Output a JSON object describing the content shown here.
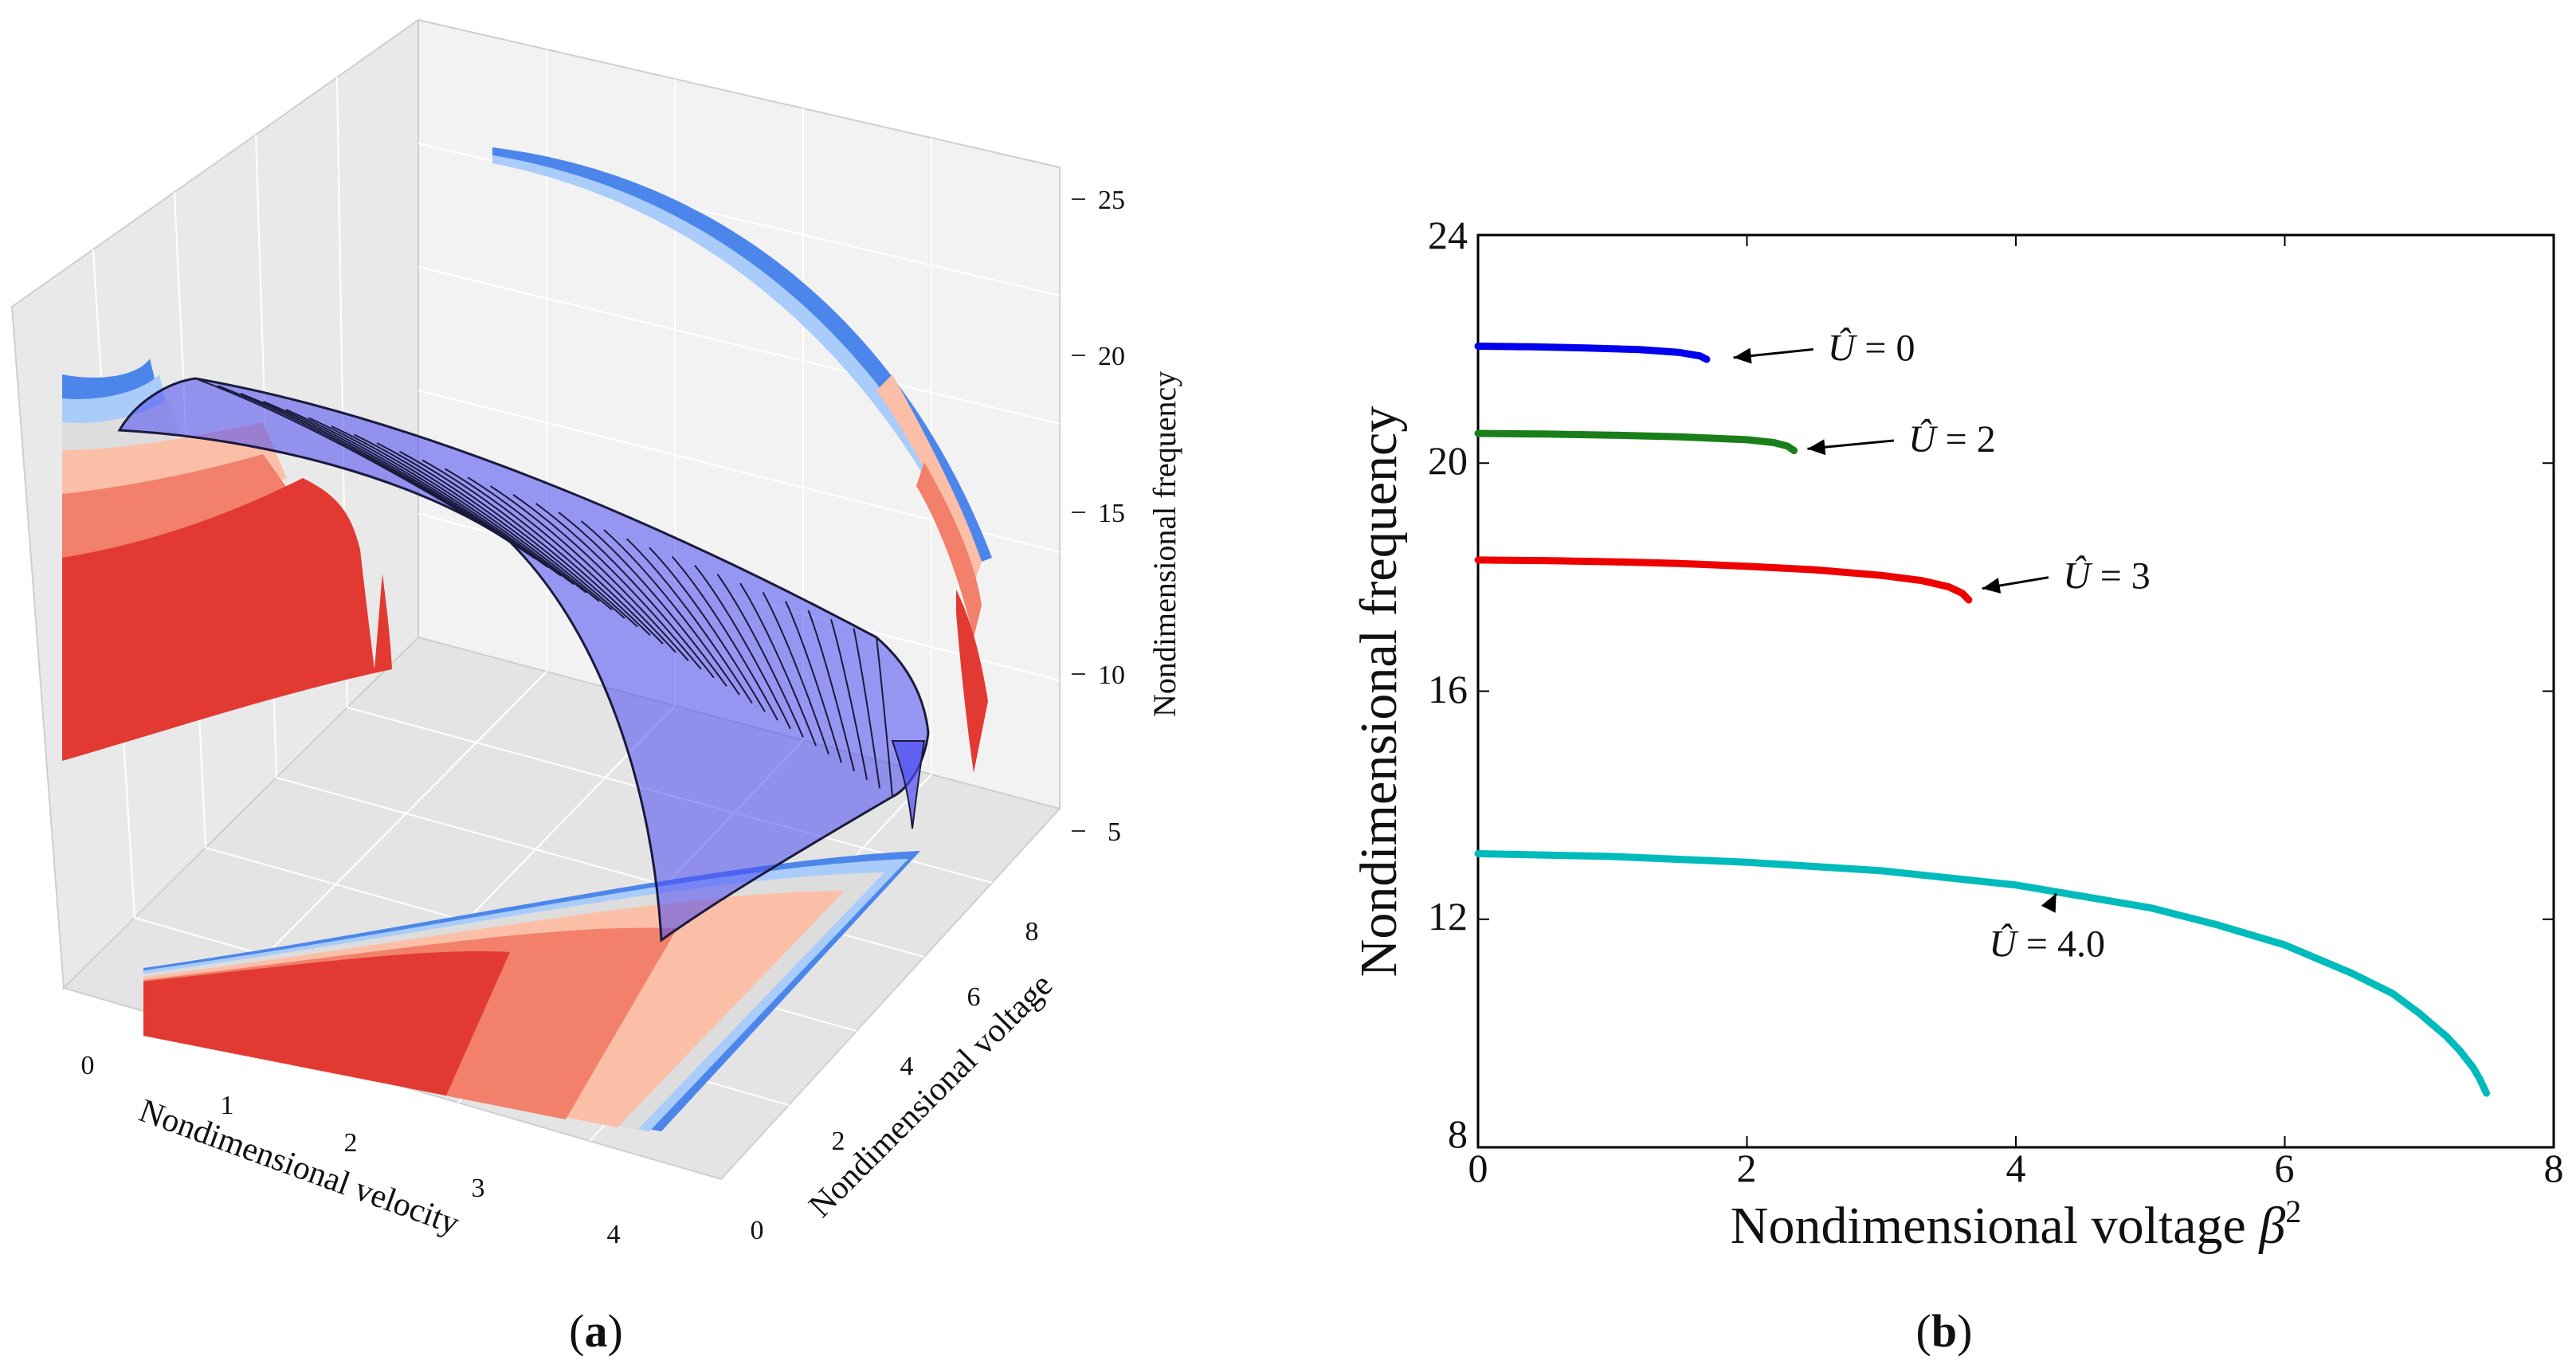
{
  "panel_a": {
    "caption_open": "(",
    "caption_letter": "a",
    "caption_close": ")"
  },
  "panel_b": {
    "caption_open": "(",
    "caption_letter": "b",
    "caption_close": ")"
  },
  "chart_data": [
    {
      "type": "surface3d",
      "panel": "a",
      "xlabel": "Nondimensional velocity",
      "ylabel": "Nondimensional voltage",
      "zlabel": "Nondimensional frequency",
      "x_ticks": [
        "0",
        "1",
        "2",
        "3",
        "4"
      ],
      "y_ticks": [
        "0",
        "2",
        "4",
        "6",
        "8"
      ],
      "z_ticks": [
        "5",
        "10",
        "15",
        "20",
        "25"
      ],
      "xlim": [
        -0.5,
        4.5
      ],
      "ylim": [
        0,
        9
      ],
      "zlim": [
        5,
        25
      ],
      "colors": {
        "surface": "#3a3af0",
        "surface_lines": "#1a1a3c",
        "contour_dark_red": "#e23a32",
        "contour_red": "#f2806b",
        "contour_salmon": "#fbbfa8",
        "contour_grey": "#dddddd",
        "contour_light_blue": "#a9ccfa",
        "contour_blue": "#4c86ea"
      }
    },
    {
      "type": "line",
      "panel": "b",
      "xlabel": "Nondimensional voltage",
      "xlabel_symbol": "β",
      "xlabel_exponent": "2",
      "ylabel": "Nondimensional frequency",
      "xlim": [
        0,
        8
      ],
      "ylim": [
        8,
        24
      ],
      "x_ticks": [
        "0",
        "2",
        "4",
        "6",
        "8"
      ],
      "y_ticks": [
        "8",
        "12",
        "16",
        "20",
        "24"
      ],
      "series": [
        {
          "name": "U = 0",
          "label_prefix": "Û",
          "label_suffix": " = 0",
          "color": "#0000ee",
          "x": [
            0,
            0.4,
            0.8,
            1.2,
            1.5,
            1.65,
            1.7
          ],
          "y": [
            22.05,
            22.04,
            22.02,
            21.99,
            21.94,
            21.88,
            21.82
          ],
          "annotation_xy": [
            1.9,
            21.85
          ],
          "text_xy": [
            2.6,
            21.8
          ]
        },
        {
          "name": "U = 2",
          "label_prefix": "Û",
          "label_suffix": " = 2",
          "color": "#1a7f1a",
          "x": [
            0,
            0.5,
            1.0,
            1.5,
            2.0,
            2.2,
            2.3,
            2.35
          ],
          "y": [
            20.52,
            20.51,
            20.49,
            20.46,
            20.41,
            20.36,
            20.3,
            20.22
          ],
          "annotation_xy": [
            2.45,
            20.25
          ],
          "text_xy": [
            3.2,
            20.2
          ]
        },
        {
          "name": "U = 3",
          "label_prefix": "Û",
          "label_suffix": " = 3",
          "color": "#ee0000",
          "x": [
            0,
            0.5,
            1.0,
            1.5,
            2.0,
            2.5,
            3.0,
            3.3,
            3.5,
            3.6,
            3.65
          ],
          "y": [
            18.3,
            18.29,
            18.27,
            18.24,
            18.19,
            18.13,
            18.03,
            17.94,
            17.83,
            17.72,
            17.6
          ],
          "annotation_xy": [
            3.75,
            17.8
          ],
          "text_xy": [
            4.35,
            17.8
          ]
        },
        {
          "name": "U = 4.0",
          "label_prefix": "Û",
          "label_suffix": " = 4.0",
          "color": "#00bbbb",
          "x": [
            0,
            1,
            2,
            3,
            4,
            5,
            5.5,
            6,
            6.5,
            6.8,
            7.0,
            7.2,
            7.3,
            7.4,
            7.45,
            7.5
          ],
          "y": [
            13.15,
            13.1,
            13.0,
            12.85,
            12.6,
            12.2,
            11.9,
            11.55,
            11.05,
            10.7,
            10.35,
            9.95,
            9.7,
            9.4,
            9.2,
            8.95
          ],
          "annotation_xy": [
            4.3,
            12.45
          ],
          "text_xy": [
            3.8,
            11.35
          ]
        }
      ]
    }
  ]
}
